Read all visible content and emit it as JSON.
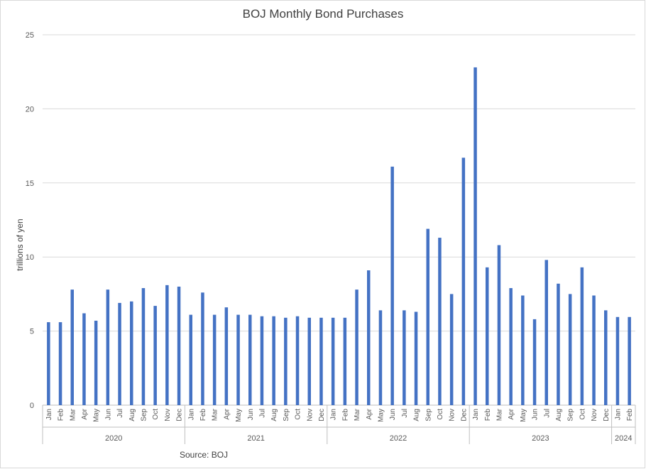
{
  "chart_data": {
    "type": "bar",
    "title": "BOJ Monthly Bond Purchases",
    "ylabel": "trillions of yen",
    "xlabel": "",
    "source": "Source: BOJ",
    "ylim": [
      0,
      25
    ],
    "yticks": [
      "0",
      "5",
      "10",
      "15",
      "20",
      "25"
    ],
    "grid": true,
    "bar_color": "#4472c4",
    "categories": [
      "Jan",
      "Feb",
      "Mar",
      "Apr",
      "May",
      "Jun",
      "Jul",
      "Aug",
      "Sep",
      "Oct",
      "Nov",
      "Dec",
      "Jan",
      "Feb",
      "Mar",
      "Apr",
      "May",
      "Jun",
      "Jul",
      "Aug",
      "Sep",
      "Oct",
      "Nov",
      "Dec",
      "Jan",
      "Feb",
      "Mar",
      "Apr",
      "May",
      "Jun",
      "Jul",
      "Aug",
      "Sep",
      "Oct",
      "Nov",
      "Dec",
      "Jan",
      "Feb",
      "Mar",
      "Apr",
      "May",
      "Jun",
      "Jul",
      "Aug",
      "Sep",
      "Oct",
      "Nov",
      "Dec",
      "Jan",
      "Feb"
    ],
    "values": [
      5.6,
      5.6,
      7.8,
      6.2,
      5.7,
      7.8,
      6.9,
      7.0,
      7.9,
      6.7,
      8.1,
      8.0,
      6.1,
      7.6,
      6.1,
      6.6,
      6.1,
      6.1,
      6.0,
      6.0,
      5.9,
      6.0,
      5.9,
      5.9,
      5.9,
      5.9,
      7.8,
      9.1,
      6.4,
      16.1,
      6.4,
      6.3,
      11.9,
      11.3,
      7.5,
      16.7,
      22.8,
      9.3,
      10.8,
      7.9,
      7.4,
      5.8,
      9.8,
      8.2,
      7.5,
      9.3,
      7.4,
      6.4,
      5.95,
      5.95
    ],
    "groups": [
      {
        "label": "2020",
        "count": 12
      },
      {
        "label": "2021",
        "count": 12
      },
      {
        "label": "2022",
        "count": 12
      },
      {
        "label": "2023",
        "count": 12
      },
      {
        "label": "2024",
        "count": 2
      }
    ]
  }
}
